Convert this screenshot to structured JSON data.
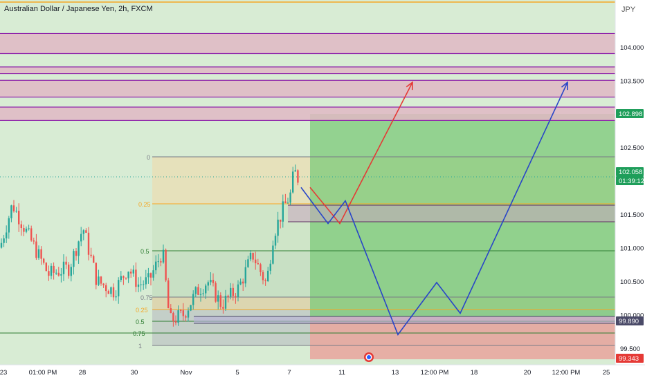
{
  "header": {
    "title": "Australian Dollar / Japanese Yen, 2h, FXCM"
  },
  "price_axis": {
    "currency": "JPY",
    "ticks": [
      "104.000",
      "103.500",
      "103.000",
      "102.500",
      "102.000",
      "101.500",
      "101.000",
      "100.500",
      "100.000",
      "99.500"
    ],
    "badges": [
      {
        "text": "102.898",
        "color": "#1e9e5a"
      },
      {
        "text": "102.058",
        "color": "#1e9e5a"
      },
      {
        "text": "01:39:12",
        "color": "#1e9e5a"
      },
      {
        "text": "99.890",
        "color": "#4a4a68"
      },
      {
        "text": "99.343",
        "color": "#e53935"
      }
    ]
  },
  "time_axis": {
    "labels": [
      "23",
      "01:00 PM",
      "28",
      "30",
      "Nov",
      "5",
      "7",
      "11",
      "13",
      "12:00 PM",
      "18",
      "20",
      "12:00 PM",
      "25"
    ]
  },
  "fib_upper": {
    "labels": [
      "0",
      "0.25",
      "0.5"
    ]
  },
  "fib_lower": {
    "labels": [
      "0.75",
      "0.25",
      "0.5",
      "0.75",
      "1"
    ]
  },
  "colors": {
    "up": "#26a69a",
    "down": "#ef5350",
    "zone_fill": "#e0b8c4",
    "zone_line": "#8e24aa",
    "gold": "#f5a623",
    "green_bg": "#d8ecd4",
    "target_green": "#7cc97a",
    "stop_red": "#e8a8a0",
    "path_red": "#e53935",
    "path_blue": "#2845c8"
  },
  "chart_data": {
    "type": "candlestick",
    "symbol": "Australian Dollar / Japanese Yen",
    "timeframe": "2h",
    "exchange": "FXCM",
    "ylim": [
      99.25,
      104.7
    ],
    "resistance_zones": [
      [
        103.9,
        104.2
      ],
      [
        103.6,
        103.7
      ],
      [
        103.25,
        103.5
      ],
      [
        102.9,
        103.1
      ]
    ],
    "last_price": 102.058,
    "countdown": "01:39:12",
    "target_price": 102.898,
    "stop_price": 99.343,
    "support_price": 99.89,
    "projection_red": [
      [
        101.9
      ],
      [
        101.36
      ],
      [
        103.47
      ]
    ],
    "projection_blue": [
      [
        101.9
      ],
      [
        101.36
      ],
      [
        101.7
      ],
      [
        99.7
      ],
      [
        100.48
      ],
      [
        100.02
      ],
      [
        103.47
      ]
    ]
  }
}
